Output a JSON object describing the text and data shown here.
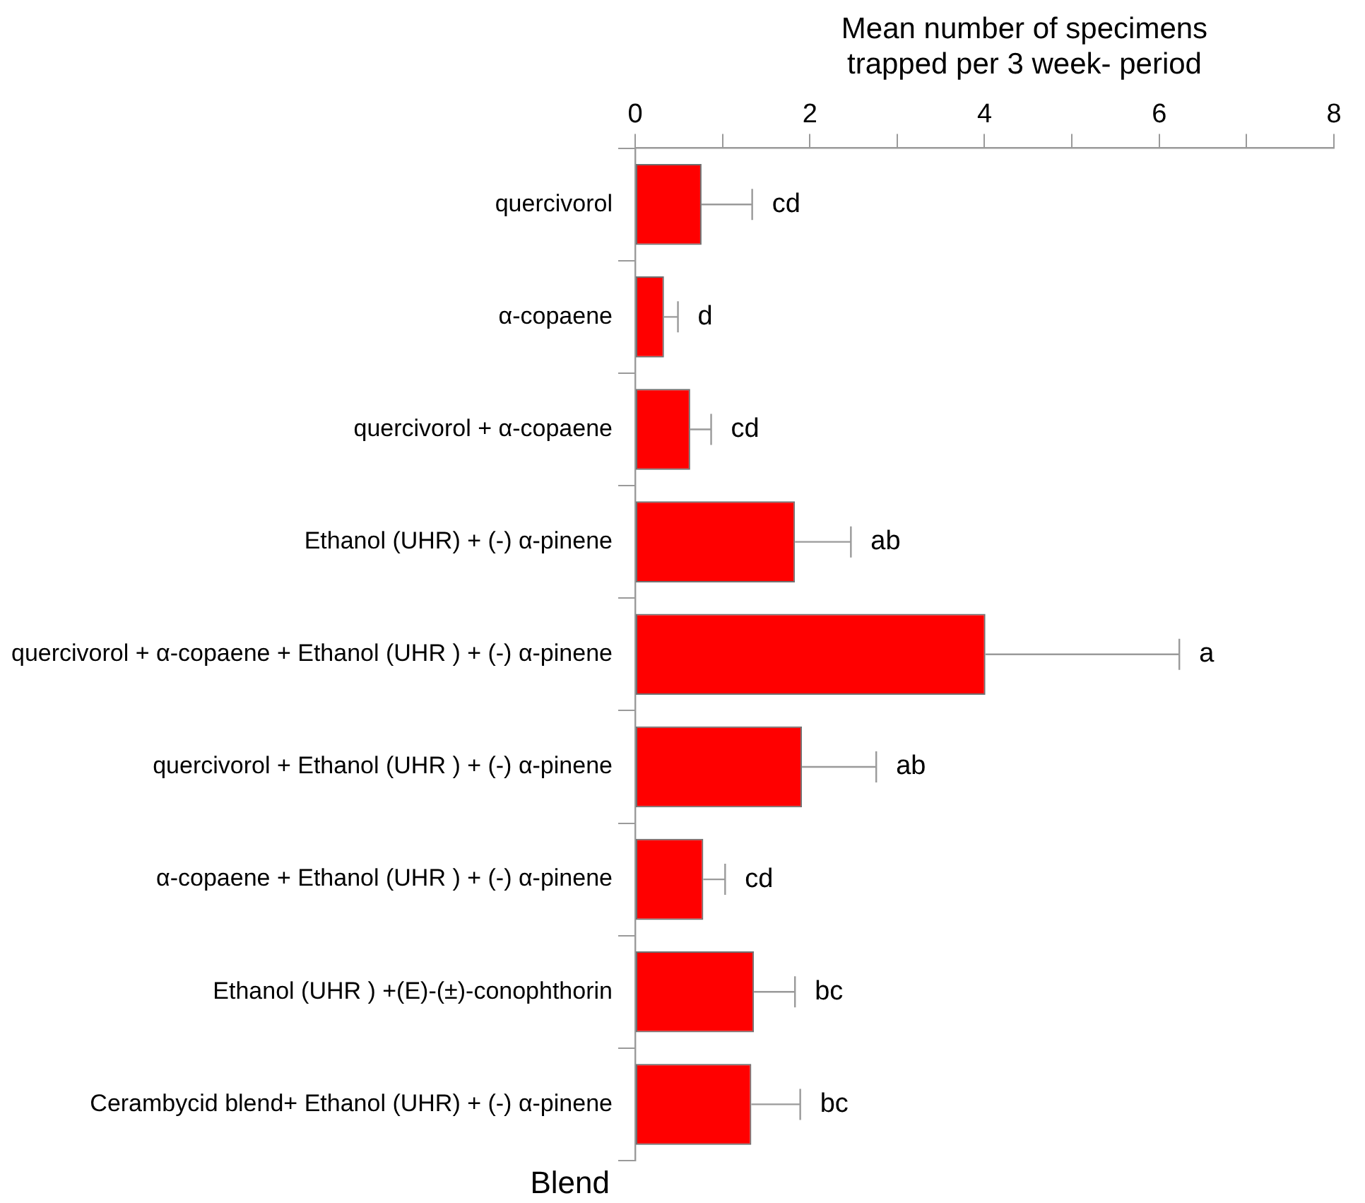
{
  "chart_data": {
    "type": "bar",
    "orientation": "horizontal",
    "xlabel": "Mean number of specimens trapped per 3 week- period",
    "ylabel": "Blend",
    "categories": [
      "quercivorol",
      "α-copaene",
      "quercivorol + α-copaene",
      "Ethanol (UHR) + (-) α-pinene",
      "quercivorol + α-copaene + Ethanol (UHR ) + (-) α-pinene",
      "quercivorol + Ethanol (UHR ) + (-) α-pinene",
      "α-copaene + Ethanol (UHR ) + (-) α-pinene",
      "Ethanol (UHR ) +(E)-(±)-conophthorin",
      "Cerambycid blend+ Ethanol (UHR) + (-) α-pinene"
    ],
    "values": [
      0.76,
      0.33,
      0.63,
      1.83,
      4.01,
      1.91,
      0.78,
      1.36,
      1.33
    ],
    "errors": [
      [
        0.76,
        1.34
      ],
      [
        0.33,
        0.49
      ],
      [
        0.63,
        0.87
      ],
      [
        1.83,
        2.47
      ],
      [
        4.01,
        6.23
      ],
      [
        1.91,
        2.76
      ],
      [
        0.78,
        1.03
      ],
      [
        1.36,
        1.83
      ],
      [
        1.33,
        1.89
      ]
    ],
    "color": "#ff0000",
    "xlim": [
      0,
      8
    ],
    "xticks": [
      0,
      {
        "value": 1,
        "label": null
      },
      2,
      {
        "value": 3,
        "label": null
      },
      4,
      {
        "value": 5,
        "label": null
      },
      6,
      {
        "value": 7,
        "label": null
      },
      8
    ],
    "annotations": [
      {
        "text": "cd",
        "x": 1.34,
        "y": "quercivorol"
      },
      {
        "text": "d",
        "x": 0.49,
        "y": "α-copaene"
      },
      {
        "text": "cd",
        "x": 0.87,
        "y": "quercivorol + α-copaene"
      },
      {
        "text": "ab",
        "x": 2.47,
        "y": "Ethanol (UHR) + (-) α-pinene"
      },
      {
        "text": "a",
        "x": 6.23,
        "y": "quercivorol + α-copaene + Ethanol (UHR ) + (-) α-pinene"
      },
      {
        "text": "ab",
        "x": 2.76,
        "y": "quercivorol + Ethanol (UHR ) + (-) α-pinene"
      },
      {
        "text": "cd",
        "x": 1.03,
        "y": "α-copaene + Ethanol (UHR ) + (-) α-pinene"
      },
      {
        "text": "bc",
        "x": 1.83,
        "y": "Ethanol (UHR ) +(E)-(±)-conophthorin"
      },
      {
        "text": "bc",
        "x": 1.89,
        "y": "Cerambycid blend+ Ethanol (UHR) + (-) α-pinene"
      }
    ],
    "grid": false,
    "legend": false
  }
}
